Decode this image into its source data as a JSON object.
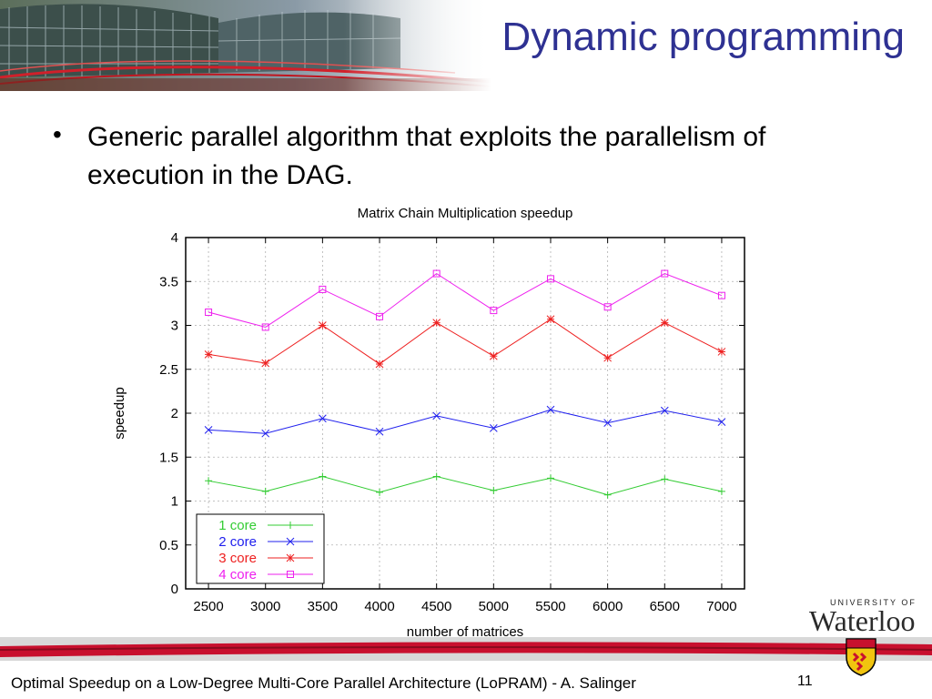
{
  "slide": {
    "title": "Dynamic programming",
    "bullet": "Generic parallel algorithm that exploits the parallelism of execution in the DAG.",
    "footer": "Optimal Speedup on a Low-Degree Multi-Core Parallel Architecture (LoPRAM) - A. Salinger",
    "page_number": "11",
    "logo_university": "UNIVERSITY OF",
    "logo_name": "Waterloo"
  },
  "colors": {
    "title": "#2e3192",
    "footer_bar": "#c8102e",
    "series_1": "#33cc33",
    "series_2": "#2020ee",
    "series_3": "#ee2020",
    "series_4": "#ee20ee"
  },
  "chart_data": {
    "type": "line",
    "title": "Matrix Chain Multiplication speedup",
    "xlabel": "number of matrices",
    "ylabel": "speedup",
    "x": [
      2500,
      3000,
      3500,
      4000,
      4500,
      5000,
      5500,
      6000,
      6500,
      7000
    ],
    "xlim": [
      2300,
      7200
    ],
    "ylim": [
      0,
      4
    ],
    "yticks": [
      "0",
      "0.5",
      "1",
      "1.5",
      "2",
      "2.5",
      "3",
      "3.5",
      "4"
    ],
    "grid": true,
    "legend_position": "bottom-left",
    "series": [
      {
        "name": "1 core",
        "marker": "plus",
        "color": "#33cc33",
        "values": [
          1.23,
          1.11,
          1.28,
          1.1,
          1.28,
          1.12,
          1.26,
          1.07,
          1.25,
          1.11
        ]
      },
      {
        "name": "2 core",
        "marker": "cross",
        "color": "#2020ee",
        "values": [
          1.81,
          1.77,
          1.94,
          1.79,
          1.97,
          1.83,
          2.04,
          1.89,
          2.03,
          1.9
        ]
      },
      {
        "name": "3 core",
        "marker": "star",
        "color": "#ee2020",
        "values": [
          2.67,
          2.57,
          3.0,
          2.56,
          3.03,
          2.65,
          3.07,
          2.63,
          3.03,
          2.7
        ]
      },
      {
        "name": "4 core",
        "marker": "square",
        "color": "#ee20ee",
        "values": [
          3.15,
          2.98,
          3.41,
          3.1,
          3.59,
          3.17,
          3.53,
          3.21,
          3.59,
          3.34
        ]
      }
    ]
  }
}
